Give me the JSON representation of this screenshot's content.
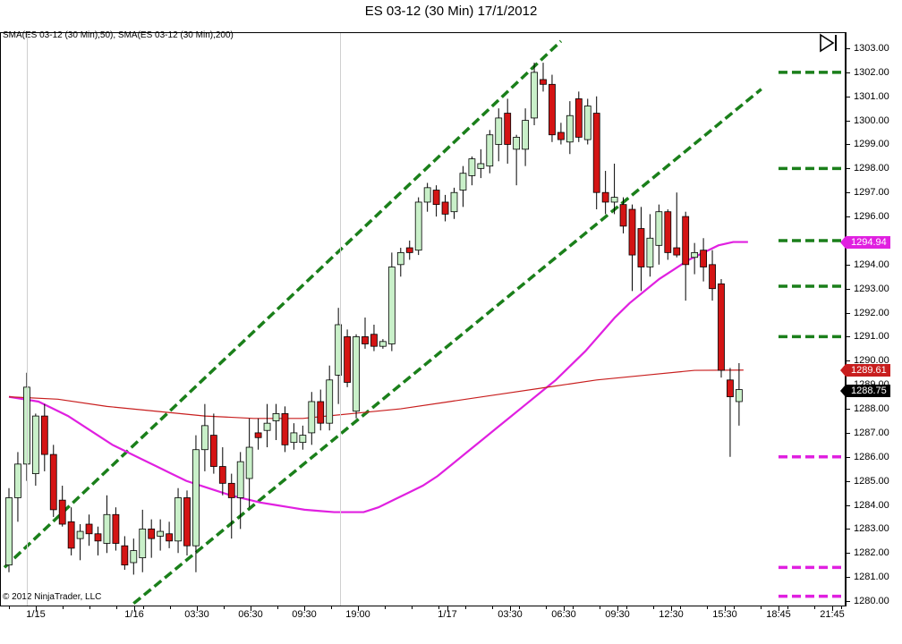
{
  "title": "ES 03-12 (30 Min)  17/1/2012",
  "indicator_label": "SMA(ES 03-12 (30 Min),50), SMA(ES 03-12 (30 Min),200)",
  "copyright": "© 2012 NinjaTrader, LLC",
  "icons": {
    "play_end": "skip-to-end-icon"
  },
  "chart_data": {
    "type": "candlestick",
    "ylim": [
      1279.8,
      1303.6
    ],
    "y_ticks": [
      "1303.00",
      "1302.00",
      "1301.00",
      "1300.00",
      "1299.00",
      "1298.00",
      "1297.00",
      "1296.00",
      "1295.00",
      "1294.00",
      "1293.00",
      "1292.00",
      "1291.00",
      "1290.00",
      "1289.00",
      "1288.00",
      "1287.00",
      "1286.00",
      "1285.00",
      "1284.00",
      "1283.00",
      "1282.00",
      "1281.00",
      "1280.00"
    ],
    "x_labels": [
      "1/15",
      "1/16",
      "03:30",
      "06:30",
      "09:30",
      "19:00",
      "1/17",
      "03:30",
      "06:30",
      "09:30",
      "12:30",
      "15:30",
      "18:45",
      "21:45"
    ],
    "candles": [
      {
        "o": 1281.5,
        "h": 1284.7,
        "l": 1281.2,
        "c": 1284.3
      },
      {
        "o": 1284.3,
        "h": 1286.2,
        "l": 1283.3,
        "c": 1285.7
      },
      {
        "o": 1285.7,
        "h": 1289.5,
        "l": 1285.0,
        "c": 1288.9
      },
      {
        "o": 1285.3,
        "h": 1287.8,
        "l": 1284.8,
        "c": 1287.7
      },
      {
        "o": 1287.7,
        "h": 1288.2,
        "l": 1285.4,
        "c": 1286.1
      },
      {
        "o": 1286.1,
        "h": 1286.5,
        "l": 1283.5,
        "c": 1283.8
      },
      {
        "o": 1284.2,
        "h": 1284.8,
        "l": 1283.1,
        "c": 1283.2
      },
      {
        "o": 1283.3,
        "h": 1283.9,
        "l": 1281.9,
        "c": 1282.2
      },
      {
        "o": 1282.6,
        "h": 1283.2,
        "l": 1281.7,
        "c": 1282.9
      },
      {
        "o": 1283.2,
        "h": 1283.6,
        "l": 1282.3,
        "c": 1282.8
      },
      {
        "o": 1282.8,
        "h": 1283.1,
        "l": 1281.9,
        "c": 1282.5
      },
      {
        "o": 1282.4,
        "h": 1284.4,
        "l": 1282.0,
        "c": 1283.6
      },
      {
        "o": 1283.6,
        "h": 1283.9,
        "l": 1282.1,
        "c": 1282.4
      },
      {
        "o": 1282.3,
        "h": 1282.7,
        "l": 1281.3,
        "c": 1281.5
      },
      {
        "o": 1281.6,
        "h": 1282.6,
        "l": 1281.1,
        "c": 1282.1
      },
      {
        "o": 1281.8,
        "h": 1283.8,
        "l": 1281.2,
        "c": 1283.0
      },
      {
        "o": 1283.0,
        "h": 1283.4,
        "l": 1281.8,
        "c": 1282.6
      },
      {
        "o": 1282.7,
        "h": 1283.4,
        "l": 1282.1,
        "c": 1282.9
      },
      {
        "o": 1282.8,
        "h": 1283.3,
        "l": 1282.2,
        "c": 1282.5
      },
      {
        "o": 1282.5,
        "h": 1284.7,
        "l": 1282.0,
        "c": 1284.3
      },
      {
        "o": 1284.3,
        "h": 1284.6,
        "l": 1281.9,
        "c": 1282.3
      },
      {
        "o": 1282.3,
        "h": 1286.9,
        "l": 1281.2,
        "c": 1286.3
      },
      {
        "o": 1286.3,
        "h": 1288.2,
        "l": 1285.4,
        "c": 1287.3
      },
      {
        "o": 1286.9,
        "h": 1287.8,
        "l": 1285.3,
        "c": 1285.6
      },
      {
        "o": 1285.6,
        "h": 1286.4,
        "l": 1284.4,
        "c": 1284.9
      },
      {
        "o": 1284.9,
        "h": 1285.3,
        "l": 1282.6,
        "c": 1284.3
      },
      {
        "o": 1284.3,
        "h": 1286.2,
        "l": 1283.0,
        "c": 1285.8
      },
      {
        "o": 1285.1,
        "h": 1287.6,
        "l": 1283.9,
        "c": 1286.4
      },
      {
        "o": 1287.0,
        "h": 1287.6,
        "l": 1286.3,
        "c": 1286.8
      },
      {
        "o": 1287.1,
        "h": 1288.2,
        "l": 1286.4,
        "c": 1287.4
      },
      {
        "o": 1287.5,
        "h": 1288.2,
        "l": 1286.7,
        "c": 1287.8
      },
      {
        "o": 1287.8,
        "h": 1288.1,
        "l": 1286.2,
        "c": 1286.5
      },
      {
        "o": 1286.6,
        "h": 1287.4,
        "l": 1286.3,
        "c": 1287.0
      },
      {
        "o": 1286.6,
        "h": 1287.3,
        "l": 1286.3,
        "c": 1286.9
      },
      {
        "o": 1287.0,
        "h": 1288.7,
        "l": 1286.5,
        "c": 1288.3
      },
      {
        "o": 1288.3,
        "h": 1288.8,
        "l": 1287.1,
        "c": 1287.4
      },
      {
        "o": 1287.4,
        "h": 1289.8,
        "l": 1287.1,
        "c": 1289.2
      },
      {
        "o": 1289.4,
        "h": 1292.2,
        "l": 1288.2,
        "c": 1291.5
      },
      {
        "o": 1291.0,
        "h": 1291.3,
        "l": 1288.9,
        "c": 1289.1
      },
      {
        "o": 1287.9,
        "h": 1291.1,
        "l": 1287.6,
        "c": 1291.0
      },
      {
        "o": 1291.0,
        "h": 1291.8,
        "l": 1290.5,
        "c": 1290.7
      },
      {
        "o": 1291.1,
        "h": 1291.5,
        "l": 1290.4,
        "c": 1290.6
      },
      {
        "o": 1290.6,
        "h": 1290.9,
        "l": 1290.5,
        "c": 1290.8
      },
      {
        "o": 1290.7,
        "h": 1294.5,
        "l": 1290.4,
        "c": 1293.9
      },
      {
        "o": 1294.0,
        "h": 1294.7,
        "l": 1293.5,
        "c": 1294.5
      },
      {
        "o": 1294.7,
        "h": 1295.0,
        "l": 1294.2,
        "c": 1294.5
      },
      {
        "o": 1294.6,
        "h": 1296.8,
        "l": 1294.4,
        "c": 1296.6
      },
      {
        "o": 1296.6,
        "h": 1297.4,
        "l": 1296.2,
        "c": 1297.2
      },
      {
        "o": 1297.1,
        "h": 1297.3,
        "l": 1296.0,
        "c": 1296.5
      },
      {
        "o": 1296.6,
        "h": 1296.9,
        "l": 1295.8,
        "c": 1296.1
      },
      {
        "o": 1296.2,
        "h": 1297.2,
        "l": 1295.9,
        "c": 1297.0
      },
      {
        "o": 1297.1,
        "h": 1298.1,
        "l": 1296.4,
        "c": 1297.8
      },
      {
        "o": 1297.7,
        "h": 1298.5,
        "l": 1297.3,
        "c": 1298.4
      },
      {
        "o": 1298.0,
        "h": 1298.8,
        "l": 1297.6,
        "c": 1298.2
      },
      {
        "o": 1298.1,
        "h": 1299.6,
        "l": 1297.8,
        "c": 1299.4
      },
      {
        "o": 1299.0,
        "h": 1300.5,
        "l": 1298.3,
        "c": 1300.1
      },
      {
        "o": 1300.3,
        "h": 1300.9,
        "l": 1298.2,
        "c": 1299.0
      },
      {
        "o": 1298.8,
        "h": 1299.4,
        "l": 1297.3,
        "c": 1299.3
      },
      {
        "o": 1298.8,
        "h": 1300.5,
        "l": 1298.1,
        "c": 1300.0
      },
      {
        "o": 1300.1,
        "h": 1302.4,
        "l": 1299.8,
        "c": 1302.0
      },
      {
        "o": 1301.7,
        "h": 1302.4,
        "l": 1301.2,
        "c": 1301.5
      },
      {
        "o": 1301.5,
        "h": 1301.9,
        "l": 1299.1,
        "c": 1299.4
      },
      {
        "o": 1299.5,
        "h": 1299.9,
        "l": 1299.0,
        "c": 1299.2
      },
      {
        "o": 1299.1,
        "h": 1300.8,
        "l": 1298.6,
        "c": 1300.2
      },
      {
        "o": 1300.9,
        "h": 1301.2,
        "l": 1299.1,
        "c": 1299.3
      },
      {
        "o": 1299.2,
        "h": 1300.9,
        "l": 1299.0,
        "c": 1300.6
      },
      {
        "o": 1300.3,
        "h": 1301.0,
        "l": 1296.3,
        "c": 1297.0
      },
      {
        "o": 1297.0,
        "h": 1297.9,
        "l": 1296.1,
        "c": 1296.6
      },
      {
        "o": 1296.6,
        "h": 1298.2,
        "l": 1296.1,
        "c": 1296.8
      },
      {
        "o": 1296.5,
        "h": 1296.8,
        "l": 1295.3,
        "c": 1295.6
      },
      {
        "o": 1296.3,
        "h": 1296.5,
        "l": 1292.9,
        "c": 1294.4
      },
      {
        "o": 1295.5,
        "h": 1296.4,
        "l": 1292.9,
        "c": 1293.9
      },
      {
        "o": 1293.9,
        "h": 1296.1,
        "l": 1293.5,
        "c": 1295.1
      },
      {
        "o": 1294.8,
        "h": 1296.5,
        "l": 1294.0,
        "c": 1296.2
      },
      {
        "o": 1296.2,
        "h": 1296.3,
        "l": 1294.2,
        "c": 1294.5
      },
      {
        "o": 1294.7,
        "h": 1297.0,
        "l": 1294.3,
        "c": 1294.4
      },
      {
        "o": 1296.0,
        "h": 1296.2,
        "l": 1292.5,
        "c": 1294.0
      },
      {
        "o": 1294.3,
        "h": 1294.9,
        "l": 1293.6,
        "c": 1294.5
      },
      {
        "o": 1294.6,
        "h": 1295.1,
        "l": 1293.3,
        "c": 1293.9
      },
      {
        "o": 1294.0,
        "h": 1294.6,
        "l": 1292.5,
        "c": 1293.0
      },
      {
        "o": 1293.2,
        "h": 1293.4,
        "l": 1289.3,
        "c": 1289.6
      },
      {
        "o": 1289.2,
        "h": 1289.7,
        "l": 1286.0,
        "c": 1288.5
      },
      {
        "o": 1288.3,
        "h": 1289.9,
        "l": 1287.3,
        "c": 1288.8
      }
    ],
    "series": [
      {
        "name": "SMA(ES 03-12 (30 Min),50)",
        "color": "#e020e0",
        "values": [
          1288.5,
          1288.4,
          1288.3,
          1288.0,
          1287.7,
          1287.3,
          1286.9,
          1286.5,
          1286.2,
          1285.9,
          1285.6,
          1285.3,
          1285.0,
          1284.8,
          1284.6,
          1284.4,
          1284.25,
          1284.1,
          1284.0,
          1283.9,
          1283.8,
          1283.75,
          1283.7,
          1283.7,
          1283.7,
          1283.9,
          1284.2,
          1284.5,
          1284.8,
          1285.2,
          1285.7,
          1286.2,
          1286.7,
          1287.2,
          1287.7,
          1288.2,
          1288.7,
          1289.2,
          1289.8,
          1290.4,
          1291.1,
          1291.8,
          1292.4,
          1292.9,
          1293.4,
          1293.8,
          1294.2,
          1294.5,
          1294.8,
          1294.94,
          1294.94
        ],
        "x_start_index": 0,
        "x_step": 1.66
      },
      {
        "name": "SMA(ES 03-12 (30 Min),200)",
        "color": "#c81e1e",
        "values": [
          1288.5,
          1288.4,
          1288.1,
          1287.9,
          1287.7,
          1287.6,
          1287.6,
          1287.8,
          1288.0,
          1288.3,
          1288.6,
          1288.9,
          1289.2,
          1289.4,
          1289.6,
          1289.61
        ],
        "x_start_index": 0,
        "x_step": 5.5
      }
    ],
    "trend_lines": [
      {
        "color": "#1a7f1a",
        "p1": {
          "i": -0.5,
          "y": 1281.4
        },
        "p2": {
          "i": 62,
          "y": 1303.3
        }
      },
      {
        "color": "#1a7f1a",
        "p1": {
          "i": 14,
          "y": 1279.9
        },
        "p2": {
          "i": 84.5,
          "y": 1301.3
        }
      }
    ],
    "horizontal_levels": [
      {
        "y": 1302.0,
        "color": "#1a7f1a"
      },
      {
        "y": 1298.0,
        "color": "#1a7f1a"
      },
      {
        "y": 1295.0,
        "color": "#1a7f1a"
      },
      {
        "y": 1293.1,
        "color": "#1a7f1a"
      },
      {
        "y": 1291.0,
        "color": "#1a7f1a"
      },
      {
        "y": 1286.0,
        "color": "#e020e0"
      },
      {
        "y": 1281.4,
        "color": "#e020e0"
      },
      {
        "y": 1280.2,
        "color": "#e020e0"
      }
    ],
    "markers": [
      {
        "label": "1294.94",
        "y": 1294.94,
        "color": "#e020e0"
      },
      {
        "label": "1289.61",
        "y": 1289.61,
        "color": "#c81e1e"
      },
      {
        "label": "1288.75",
        "y": 1288.75,
        "color": "#000000"
      }
    ],
    "colors": {
      "up": "#c9f0c9",
      "down": "#d41414",
      "wick": "#000000"
    }
  }
}
